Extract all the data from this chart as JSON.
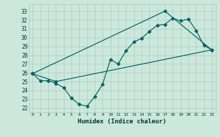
{
  "title": "",
  "xlabel": "Humidex (Indice chaleur)",
  "bg_color": "#cce8dc",
  "grid_color": "#aaccbb",
  "line_color": "#006666",
  "xlim": [
    -0.5,
    23.5
  ],
  "ylim": [
    21.5,
    33.8
  ],
  "yticks": [
    22,
    23,
    24,
    25,
    26,
    27,
    28,
    29,
    30,
    31,
    32,
    33
  ],
  "xticks": [
    0,
    1,
    2,
    3,
    4,
    5,
    6,
    7,
    8,
    9,
    10,
    11,
    12,
    13,
    14,
    15,
    16,
    17,
    18,
    19,
    20,
    21,
    22,
    23
  ],
  "line1_x": [
    0,
    1,
    2,
    3,
    4,
    5,
    6,
    7,
    8,
    9,
    10,
    11,
    12,
    13,
    14,
    15,
    16,
    17,
    18,
    19,
    20,
    21,
    22,
    23
  ],
  "line1_y": [
    25.9,
    25.1,
    25.1,
    24.8,
    24.3,
    23.1,
    22.4,
    22.2,
    23.3,
    24.7,
    27.5,
    27.0,
    28.5,
    29.5,
    29.9,
    30.7,
    31.4,
    31.5,
    32.2,
    31.9,
    32.1,
    30.8,
    29.1,
    28.6
  ],
  "line2_x": [
    0,
    3,
    23
  ],
  "line2_y": [
    25.9,
    25.0,
    28.6
  ],
  "line3_x": [
    0,
    17,
    23
  ],
  "line3_y": [
    25.9,
    33.0,
    28.6
  ]
}
